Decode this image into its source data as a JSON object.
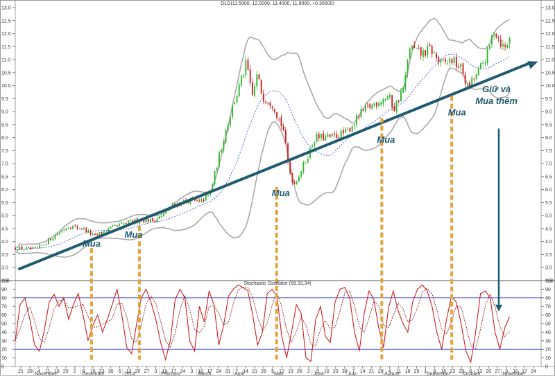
{
  "chart_data": [
    {
      "type": "candlestick",
      "title": "DLG(11.5000, 12.0000, 11.4000, 11.8000, +0.30000)",
      "ylim": [
        2.5,
        13.0
      ],
      "y_ticks": [
        "13.0",
        "12.5",
        "12.0",
        "11.5",
        "11.0",
        "10.5",
        "10.0",
        "9.5",
        "9.0",
        "8.5",
        "8.0",
        "7.5",
        "7.0",
        "6.5",
        "6.0",
        "5.5",
        "5.0",
        "4.5",
        "4.0",
        "3.5",
        "3.0",
        "2.5"
      ],
      "grid": false,
      "colors": {
        "up": "#2db52d",
        "down": "#d01c1c",
        "bands": "#a8a8a8",
        "ma": "#2a3fd6",
        "trend": "#1f5a6e",
        "marker": "#e6a23c"
      },
      "price_path": [
        {
          "t": 0.0,
          "p": 3.75
        },
        {
          "t": 0.04,
          "p": 3.7
        },
        {
          "t": 0.08,
          "p": 4.3
        },
        {
          "t": 0.1,
          "p": 4.6
        },
        {
          "t": 0.13,
          "p": 4.5
        },
        {
          "t": 0.15,
          "p": 4.2
        },
        {
          "t": 0.18,
          "p": 4.5
        },
        {
          "t": 0.21,
          "p": 4.7
        },
        {
          "t": 0.24,
          "p": 4.85
        },
        {
          "t": 0.26,
          "p": 4.8
        },
        {
          "t": 0.28,
          "p": 5.0
        },
        {
          "t": 0.3,
          "p": 5.4
        },
        {
          "t": 0.33,
          "p": 5.6
        },
        {
          "t": 0.35,
          "p": 5.5
        },
        {
          "t": 0.37,
          "p": 5.8
        },
        {
          "t": 0.39,
          "p": 7.5
        },
        {
          "t": 0.41,
          "p": 9.0
        },
        {
          "t": 0.43,
          "p": 10.2
        },
        {
          "t": 0.44,
          "p": 10.9
        },
        {
          "t": 0.45,
          "p": 9.5
        },
        {
          "t": 0.46,
          "p": 10.4
        },
        {
          "t": 0.47,
          "p": 9.6
        },
        {
          "t": 0.49,
          "p": 9.3
        },
        {
          "t": 0.51,
          "p": 8.3
        },
        {
          "t": 0.52,
          "p": 6.8
        },
        {
          "t": 0.53,
          "p": 6.2
        },
        {
          "t": 0.55,
          "p": 7.0
        },
        {
          "t": 0.57,
          "p": 8.0
        },
        {
          "t": 0.6,
          "p": 8.0
        },
        {
          "t": 0.63,
          "p": 8.2
        },
        {
          "t": 0.66,
          "p": 9.0
        },
        {
          "t": 0.69,
          "p": 9.4
        },
        {
          "t": 0.71,
          "p": 9.6
        },
        {
          "t": 0.72,
          "p": 9.1
        },
        {
          "t": 0.74,
          "p": 10.0
        },
        {
          "t": 0.75,
          "p": 11.5
        },
        {
          "t": 0.77,
          "p": 11.2
        },
        {
          "t": 0.79,
          "p": 11.4
        },
        {
          "t": 0.81,
          "p": 10.8
        },
        {
          "t": 0.83,
          "p": 11.0
        },
        {
          "t": 0.85,
          "p": 10.6
        },
        {
          "t": 0.86,
          "p": 9.9
        },
        {
          "t": 0.88,
          "p": 10.5
        },
        {
          "t": 0.9,
          "p": 11.3
        },
        {
          "t": 0.91,
          "p": 12.2
        },
        {
          "t": 0.93,
          "p": 11.4
        },
        {
          "t": 0.94,
          "p": 11.8
        }
      ],
      "trendline": [
        {
          "t": 0.0,
          "p": 2.95
        },
        {
          "t": 1.0,
          "p": 10.85
        }
      ],
      "annotations": [
        {
          "text": "Mua",
          "t": 0.145,
          "p": 3.8
        },
        {
          "text": "Mua",
          "t": 0.225,
          "p": 4.15
        },
        {
          "text": "Mua",
          "t": 0.505,
          "p": 5.75
        },
        {
          "text": "Mua",
          "t": 0.705,
          "p": 7.8
        },
        {
          "text": "Mua",
          "t": 0.84,
          "p": 8.85
        },
        {
          "text": "Giữ và",
          "t": 0.915,
          "p": 9.75
        },
        {
          "text": "Mua thêm",
          "t": 0.915,
          "p": 9.3
        }
      ]
    },
    {
      "type": "line",
      "title": "Stochastic Oscillator (58.33,34)",
      "ylim": [
        0,
        100
      ],
      "y_ticks": [
        "100",
        "90",
        "80",
        "70",
        "60",
        "50",
        "40",
        "30",
        "20",
        "10",
        "0"
      ],
      "levels": [
        80,
        20
      ],
      "series": [
        {
          "values": [
            30,
            72,
            80,
            55,
            25,
            18,
            42,
            75,
            84,
            70,
            80,
            55,
            72,
            85,
            60,
            30,
            48,
            60,
            40,
            55,
            72,
            90,
            60,
            22,
            15,
            48,
            80,
            90,
            75,
            55,
            28,
            8,
            30,
            78,
            90,
            80,
            30,
            18,
            70,
            52,
            88,
            72,
            25,
            48,
            82,
            90,
            95,
            92,
            88,
            60,
            25,
            40,
            85,
            90,
            82,
            35,
            10,
            40,
            72,
            62,
            10,
            6,
            55,
            70,
            35,
            28,
            75,
            90,
            92,
            80,
            40,
            18,
            62,
            88,
            78,
            45,
            22,
            68,
            88,
            65,
            50,
            40,
            75,
            90,
            95,
            88,
            70,
            40,
            20,
            55,
            82,
            75,
            50,
            18,
            5,
            40,
            85,
            88,
            80,
            40,
            20,
            45,
            58
          ]
        }
      ]
    }
  ],
  "x_axis": {
    "day_labels": [
      "21",
      "28",
      "4",
      "11",
      "18",
      "25",
      "2",
      "9",
      "16",
      "23",
      "30",
      "6",
      "13",
      "20",
      "27",
      "3",
      "10",
      "17",
      "24",
      "3",
      "10",
      "17",
      "24",
      "31",
      "7",
      "14",
      "21",
      "28",
      "5",
      "12",
      "19",
      "26",
      "2",
      "9",
      "16",
      "23",
      "30",
      "7",
      "14",
      "21",
      "28",
      "4",
      "11",
      "18",
      "25",
      "1",
      "8",
      "15",
      "22",
      "29",
      "6",
      "13",
      "20",
      "27",
      "3",
      "10",
      "17",
      "24"
    ],
    "month_labels": [
      "November",
      "December",
      "2014",
      "February",
      "March",
      "April",
      "May",
      "June",
      "July",
      "August",
      "September",
      "October",
      "November"
    ]
  }
}
